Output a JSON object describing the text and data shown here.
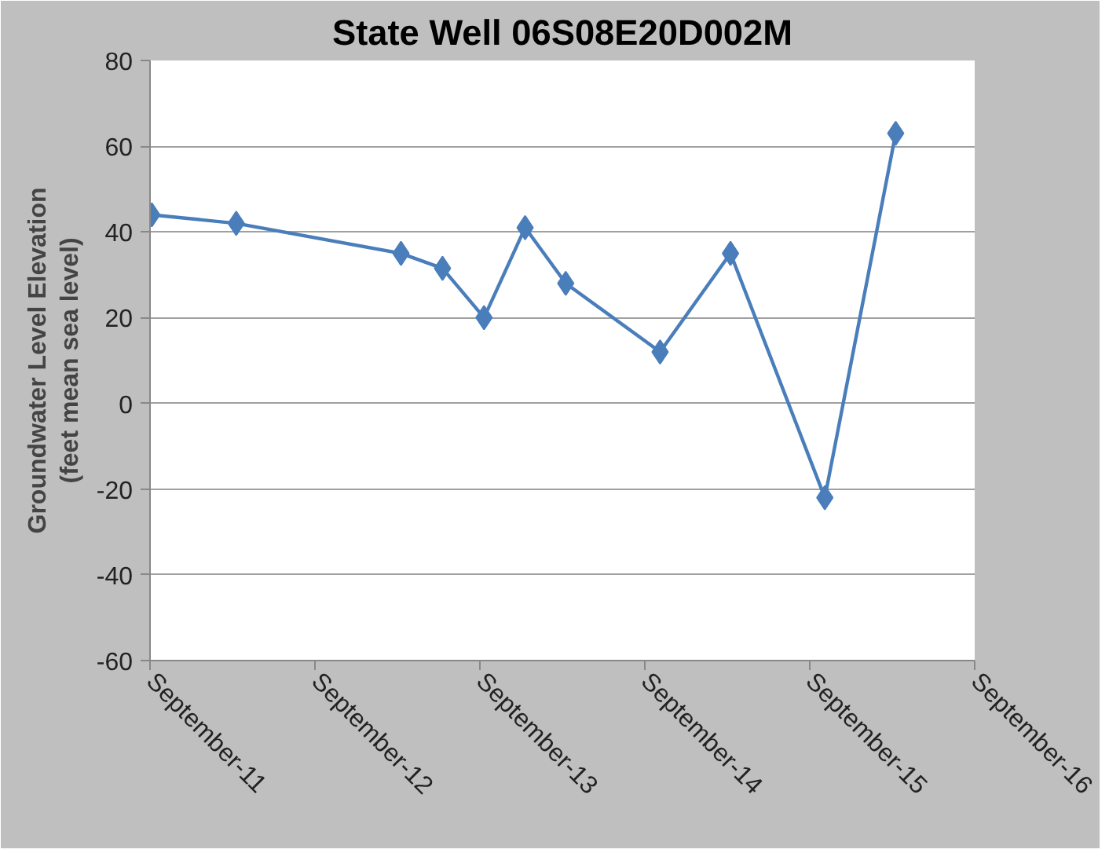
{
  "chart_data": {
    "type": "line",
    "title": "State Well 06S08E20D002M",
    "ylabel": "Groundwater Level Elevation\n(feet mean sea level)",
    "x": [
      "2011-09-05",
      "2012-03-10",
      "2013-03-10",
      "2013-06-10",
      "2013-09-10",
      "2013-12-10",
      "2014-03-10",
      "2014-10-05",
      "2015-03-10",
      "2015-10-05",
      "2016-03-10"
    ],
    "series": [
      {
        "color": "#4a7ebb",
        "values": [
          44,
          42,
          35,
          31.5,
          20,
          41,
          28,
          12,
          35,
          -22,
          63
        ]
      }
    ],
    "xlim": [
      "2011-09-01",
      "2016-09-01"
    ],
    "xticks": [
      {
        "value": "2011-09-01",
        "label": "September-11"
      },
      {
        "value": "2012-09-01",
        "label": "September-12"
      },
      {
        "value": "2013-09-01",
        "label": "September-13"
      },
      {
        "value": "2014-09-01",
        "label": "September-14"
      },
      {
        "value": "2015-09-01",
        "label": "September-15"
      },
      {
        "value": "2016-09-01",
        "label": "September-16"
      }
    ],
    "ylim": [
      -60,
      80
    ],
    "yticks": [
      -60,
      -40,
      -20,
      0,
      20,
      40,
      60,
      80
    ],
    "grid": "y",
    "marker": "diamond",
    "line_style": "solid"
  }
}
